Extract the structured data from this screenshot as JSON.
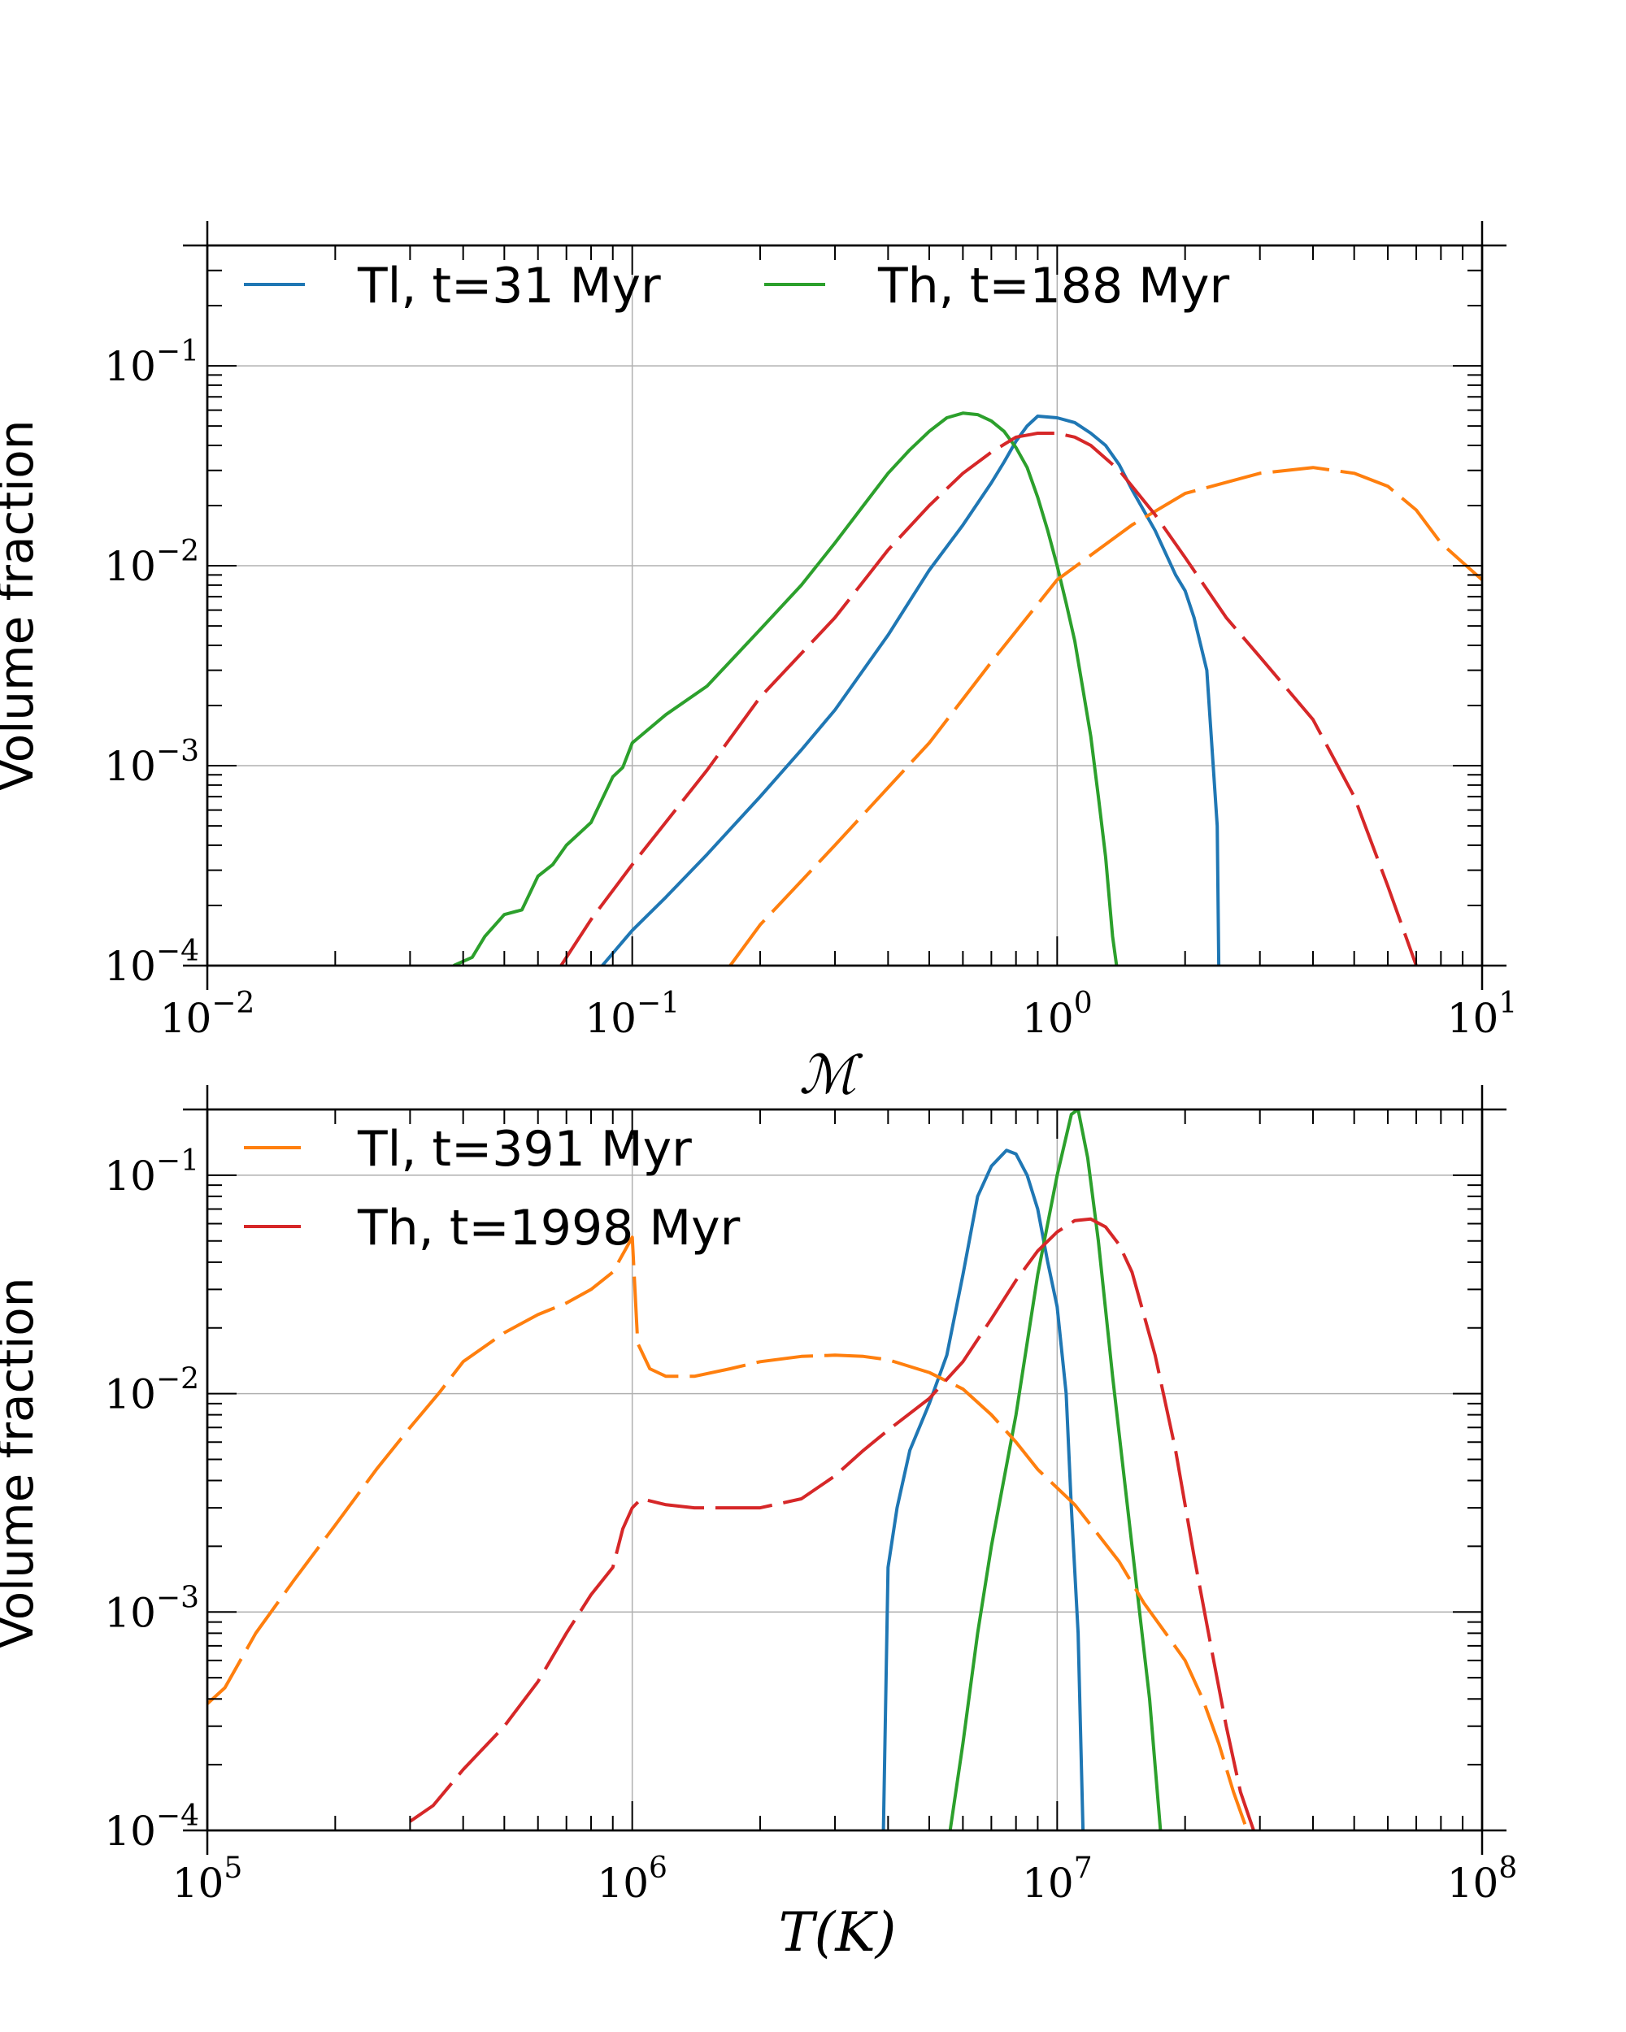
{
  "chart_data": [
    {
      "type": "line",
      "xscale": "log",
      "yscale": "log",
      "xlim": [
        0.01,
        10
      ],
      "ylim": [
        0.0001,
        0.4
      ],
      "xlabel": "ℳ",
      "ylabel": "Volume fraction",
      "xticks": [
        0.01,
        0.1,
        1,
        10
      ],
      "xtick_labels": [
        {
          "base": "10",
          "exp": "−2"
        },
        {
          "base": "10",
          "exp": "−1"
        },
        {
          "base": "10",
          "exp": "0"
        },
        {
          "base": "10",
          "exp": "1"
        }
      ],
      "yticks": [
        0.0001,
        0.001,
        0.01,
        0.1
      ],
      "ytick_labels": [
        {
          "base": "10",
          "exp": "−4"
        },
        {
          "base": "10",
          "exp": "−3"
        },
        {
          "base": "10",
          "exp": "−2"
        },
        {
          "base": "10",
          "exp": "−1"
        }
      ],
      "grid": true,
      "legend": {
        "placement": "top",
        "entries": [
          "Tl, t=31 Myr",
          "Th, t=188 Myr"
        ]
      },
      "series": [
        {
          "name": "Tl, t=31 Myr",
          "color": "#1f77b4",
          "style": "solid",
          "points": [
            [
              0.085,
              0.0001
            ],
            [
              0.1,
              0.00015
            ],
            [
              0.12,
              0.00022
            ],
            [
              0.15,
              0.00036
            ],
            [
              0.2,
              0.0007
            ],
            [
              0.25,
              0.0012
            ],
            [
              0.3,
              0.0019
            ],
            [
              0.4,
              0.0045
            ],
            [
              0.5,
              0.0095
            ],
            [
              0.6,
              0.016
            ],
            [
              0.7,
              0.026
            ],
            [
              0.75,
              0.033
            ],
            [
              0.8,
              0.042
            ],
            [
              0.85,
              0.05
            ],
            [
              0.9,
              0.056
            ],
            [
              1.0,
              0.055
            ],
            [
              1.1,
              0.052
            ],
            [
              1.2,
              0.046
            ],
            [
              1.3,
              0.04
            ],
            [
              1.4,
              0.032
            ],
            [
              1.5,
              0.024
            ],
            [
              1.7,
              0.015
            ],
            [
              1.9,
              0.009
            ],
            [
              2.0,
              0.0075
            ],
            [
              2.1,
              0.0055
            ],
            [
              2.25,
              0.003
            ],
            [
              2.38,
              0.0005
            ],
            [
              2.4,
              0.0001
            ]
          ]
        },
        {
          "name": "Th, t=188 Myr",
          "color": "#2ca02c",
          "style": "solid",
          "points": [
            [
              0.038,
              0.0001
            ],
            [
              0.042,
              0.00011
            ],
            [
              0.045,
              0.00014
            ],
            [
              0.05,
              0.00018
            ],
            [
              0.055,
              0.00019
            ],
            [
              0.06,
              0.00028
            ],
            [
              0.065,
              0.00032
            ],
            [
              0.07,
              0.0004
            ],
            [
              0.08,
              0.00052
            ],
            [
              0.09,
              0.00088
            ],
            [
              0.095,
              0.00098
            ],
            [
              0.1,
              0.0013
            ],
            [
              0.12,
              0.0018
            ],
            [
              0.15,
              0.0025
            ],
            [
              0.2,
              0.0048
            ],
            [
              0.25,
              0.008
            ],
            [
              0.3,
              0.013
            ],
            [
              0.35,
              0.02
            ],
            [
              0.4,
              0.029
            ],
            [
              0.45,
              0.038
            ],
            [
              0.5,
              0.047
            ],
            [
              0.55,
              0.055
            ],
            [
              0.6,
              0.058
            ],
            [
              0.65,
              0.057
            ],
            [
              0.7,
              0.053
            ],
            [
              0.75,
              0.047
            ],
            [
              0.8,
              0.039
            ],
            [
              0.85,
              0.031
            ],
            [
              0.9,
              0.022
            ],
            [
              0.95,
              0.015
            ],
            [
              1.0,
              0.01
            ],
            [
              1.05,
              0.0065
            ],
            [
              1.1,
              0.0042
            ],
            [
              1.15,
              0.0024
            ],
            [
              1.2,
              0.0014
            ],
            [
              1.25,
              0.0007
            ],
            [
              1.3,
              0.00035
            ],
            [
              1.35,
              0.00014
            ],
            [
              1.38,
              0.0001
            ]
          ]
        },
        {
          "name": "Tl, t=391 Myr",
          "color": "#ff7f0e",
          "style": "dashed",
          "points": [
            [
              0.17,
              0.0001
            ],
            [
              0.2,
              0.00016
            ],
            [
              0.3,
              0.0004
            ],
            [
              0.5,
              0.0013
            ],
            [
              0.7,
              0.0033
            ],
            [
              1.0,
              0.0085
            ],
            [
              1.5,
              0.016
            ],
            [
              2.0,
              0.023
            ],
            [
              3.0,
              0.029
            ],
            [
              4.0,
              0.031
            ],
            [
              5.0,
              0.029
            ],
            [
              6.0,
              0.025
            ],
            [
              7.0,
              0.019
            ],
            [
              8.0,
              0.013
            ],
            [
              10.0,
              0.0085
            ]
          ]
        },
        {
          "name": "Th, t=1998 Myr",
          "color": "#d62728",
          "style": "dashed",
          "points": [
            [
              0.068,
              0.0001
            ],
            [
              0.08,
              0.00017
            ],
            [
              0.1,
              0.00032
            ],
            [
              0.15,
              0.00095
            ],
            [
              0.2,
              0.0022
            ],
            [
              0.3,
              0.0055
            ],
            [
              0.4,
              0.012
            ],
            [
              0.5,
              0.02
            ],
            [
              0.6,
              0.029
            ],
            [
              0.7,
              0.037
            ],
            [
              0.8,
              0.044
            ],
            [
              0.9,
              0.046
            ],
            [
              1.0,
              0.046
            ],
            [
              1.1,
              0.044
            ],
            [
              1.2,
              0.04
            ],
            [
              1.4,
              0.03
            ],
            [
              1.7,
              0.018
            ],
            [
              2.0,
              0.011
            ],
            [
              2.5,
              0.0055
            ],
            [
              3.0,
              0.0035
            ],
            [
              4.0,
              0.0017
            ],
            [
              5.0,
              0.0007
            ],
            [
              6.0,
              0.00025
            ],
            [
              7.0,
              0.0001
            ]
          ]
        }
      ]
    },
    {
      "type": "line",
      "xscale": "log",
      "yscale": "log",
      "xlim": [
        100000,
        100000000
      ],
      "ylim": [
        0.0001,
        0.2
      ],
      "xlabel": "T(K)",
      "ylabel": "Volume fraction",
      "xticks": [
        100000,
        1000000,
        10000000,
        100000000
      ],
      "xtick_labels": [
        {
          "base": "10",
          "exp": "5"
        },
        {
          "base": "10",
          "exp": "6"
        },
        {
          "base": "10",
          "exp": "7"
        },
        {
          "base": "10",
          "exp": "8"
        }
      ],
      "yticks": [
        0.0001,
        0.001,
        0.01,
        0.1
      ],
      "ytick_labels": [
        {
          "base": "10",
          "exp": "−4"
        },
        {
          "base": "10",
          "exp": "−3"
        },
        {
          "base": "10",
          "exp": "−2"
        },
        {
          "base": "10",
          "exp": "−1"
        }
      ],
      "grid": true,
      "legend": {
        "placement": "top-left",
        "entries": [
          "Tl, t=391 Myr",
          "Th, t=1998 Myr"
        ]
      },
      "series": [
        {
          "name": "Tl, t=31 Myr",
          "color": "#1f77b4",
          "style": "solid",
          "points": [
            [
              3900000,
              0.0001
            ],
            [
              4000000,
              0.0016
            ],
            [
              4200000,
              0.003
            ],
            [
              4500000,
              0.0055
            ],
            [
              5000000,
              0.009
            ],
            [
              5500000,
              0.015
            ],
            [
              6000000,
              0.035
            ],
            [
              6500000,
              0.08
            ],
            [
              7000000,
              0.11
            ],
            [
              7600000,
              0.13
            ],
            [
              8000000,
              0.125
            ],
            [
              8500000,
              0.1
            ],
            [
              9000000,
              0.07
            ],
            [
              9500000,
              0.04
            ],
            [
              10000000,
              0.025
            ],
            [
              10500000,
              0.01
            ],
            [
              10800000,
              0.003
            ],
            [
              11200000,
              0.0008
            ],
            [
              11500000,
              0.0001
            ]
          ]
        },
        {
          "name": "Th, t=188 Myr",
          "color": "#2ca02c",
          "style": "solid",
          "points": [
            [
              5600000,
              0.0001
            ],
            [
              6000000,
              0.00025
            ],
            [
              6500000,
              0.0008
            ],
            [
              7000000,
              0.002
            ],
            [
              8000000,
              0.008
            ],
            [
              9000000,
              0.035
            ],
            [
              10000000,
              0.1
            ],
            [
              10800000,
              0.19
            ],
            [
              11200000,
              0.2
            ],
            [
              11800000,
              0.12
            ],
            [
              12500000,
              0.05
            ],
            [
              13500000,
              0.012
            ],
            [
              15000000,
              0.002
            ],
            [
              16500000,
              0.0004
            ],
            [
              17500000,
              0.0001
            ]
          ]
        },
        {
          "name": "Tl, t=391 Myr",
          "color": "#ff7f0e",
          "style": "dashed",
          "points": [
            [
              100000,
              0.00038
            ],
            [
              110000,
              0.00045
            ],
            [
              130000,
              0.0008
            ],
            [
              160000,
              0.0014
            ],
            [
              200000,
              0.0025
            ],
            [
              250000,
              0.0045
            ],
            [
              300000,
              0.007
            ],
            [
              350000,
              0.01
            ],
            [
              400000,
              0.014
            ],
            [
              500000,
              0.019
            ],
            [
              600000,
              0.023
            ],
            [
              700000,
              0.026
            ],
            [
              800000,
              0.03
            ],
            [
              900000,
              0.036
            ],
            [
              1000000,
              0.052
            ],
            [
              1030000,
              0.017
            ],
            [
              1100000,
              0.013
            ],
            [
              1200000,
              0.012
            ],
            [
              1400000,
              0.012
            ],
            [
              1700000,
              0.013
            ],
            [
              2000000,
              0.014
            ],
            [
              2500000,
              0.0148
            ],
            [
              3000000,
              0.015
            ],
            [
              3500000,
              0.0148
            ],
            [
              4000000,
              0.0143
            ],
            [
              5000000,
              0.0125
            ],
            [
              6000000,
              0.0105
            ],
            [
              7000000,
              0.008
            ],
            [
              8000000,
              0.006
            ],
            [
              9000000,
              0.0045
            ],
            [
              10000000,
              0.0037
            ],
            [
              11000000,
              0.0031
            ],
            [
              12000000,
              0.0025
            ],
            [
              14000000,
              0.0017
            ],
            [
              16000000,
              0.0011
            ],
            [
              18000000,
              0.0008
            ],
            [
              20000000,
              0.0006
            ],
            [
              22000000,
              0.0004
            ],
            [
              24000000,
              0.00025
            ],
            [
              26000000,
              0.00015
            ],
            [
              28000000,
              0.0001
            ]
          ]
        },
        {
          "name": "Th, t=1998 Myr",
          "color": "#d62728",
          "style": "dashed",
          "points": [
            [
              300000,
              0.00011
            ],
            [
              340000,
              0.00013
            ],
            [
              400000,
              0.00019
            ],
            [
              500000,
              0.0003
            ],
            [
              600000,
              0.00048
            ],
            [
              700000,
              0.0008
            ],
            [
              800000,
              0.0012
            ],
            [
              900000,
              0.0016
            ],
            [
              950000,
              0.0024
            ],
            [
              1000000,
              0.003
            ],
            [
              1050000,
              0.0033
            ],
            [
              1200000,
              0.0031
            ],
            [
              1400000,
              0.003
            ],
            [
              1700000,
              0.003
            ],
            [
              2000000,
              0.003
            ],
            [
              2500000,
              0.0033
            ],
            [
              3000000,
              0.0042
            ],
            [
              3500000,
              0.0055
            ],
            [
              4000000,
              0.0068
            ],
            [
              5000000,
              0.0095
            ],
            [
              6000000,
              0.014
            ],
            [
              7000000,
              0.022
            ],
            [
              8000000,
              0.033
            ],
            [
              9000000,
              0.045
            ],
            [
              10000000,
              0.055
            ],
            [
              11000000,
              0.062
            ],
            [
              12000000,
              0.063
            ],
            [
              13000000,
              0.058
            ],
            [
              14000000,
              0.048
            ],
            [
              15000000,
              0.036
            ],
            [
              17000000,
              0.015
            ],
            [
              19000000,
              0.0055
            ],
            [
              21000000,
              0.0018
            ],
            [
              23000000,
              0.0007
            ],
            [
              25000000,
              0.0003
            ],
            [
              27000000,
              0.00015
            ],
            [
              29000000,
              0.0001
            ]
          ]
        }
      ]
    }
  ]
}
